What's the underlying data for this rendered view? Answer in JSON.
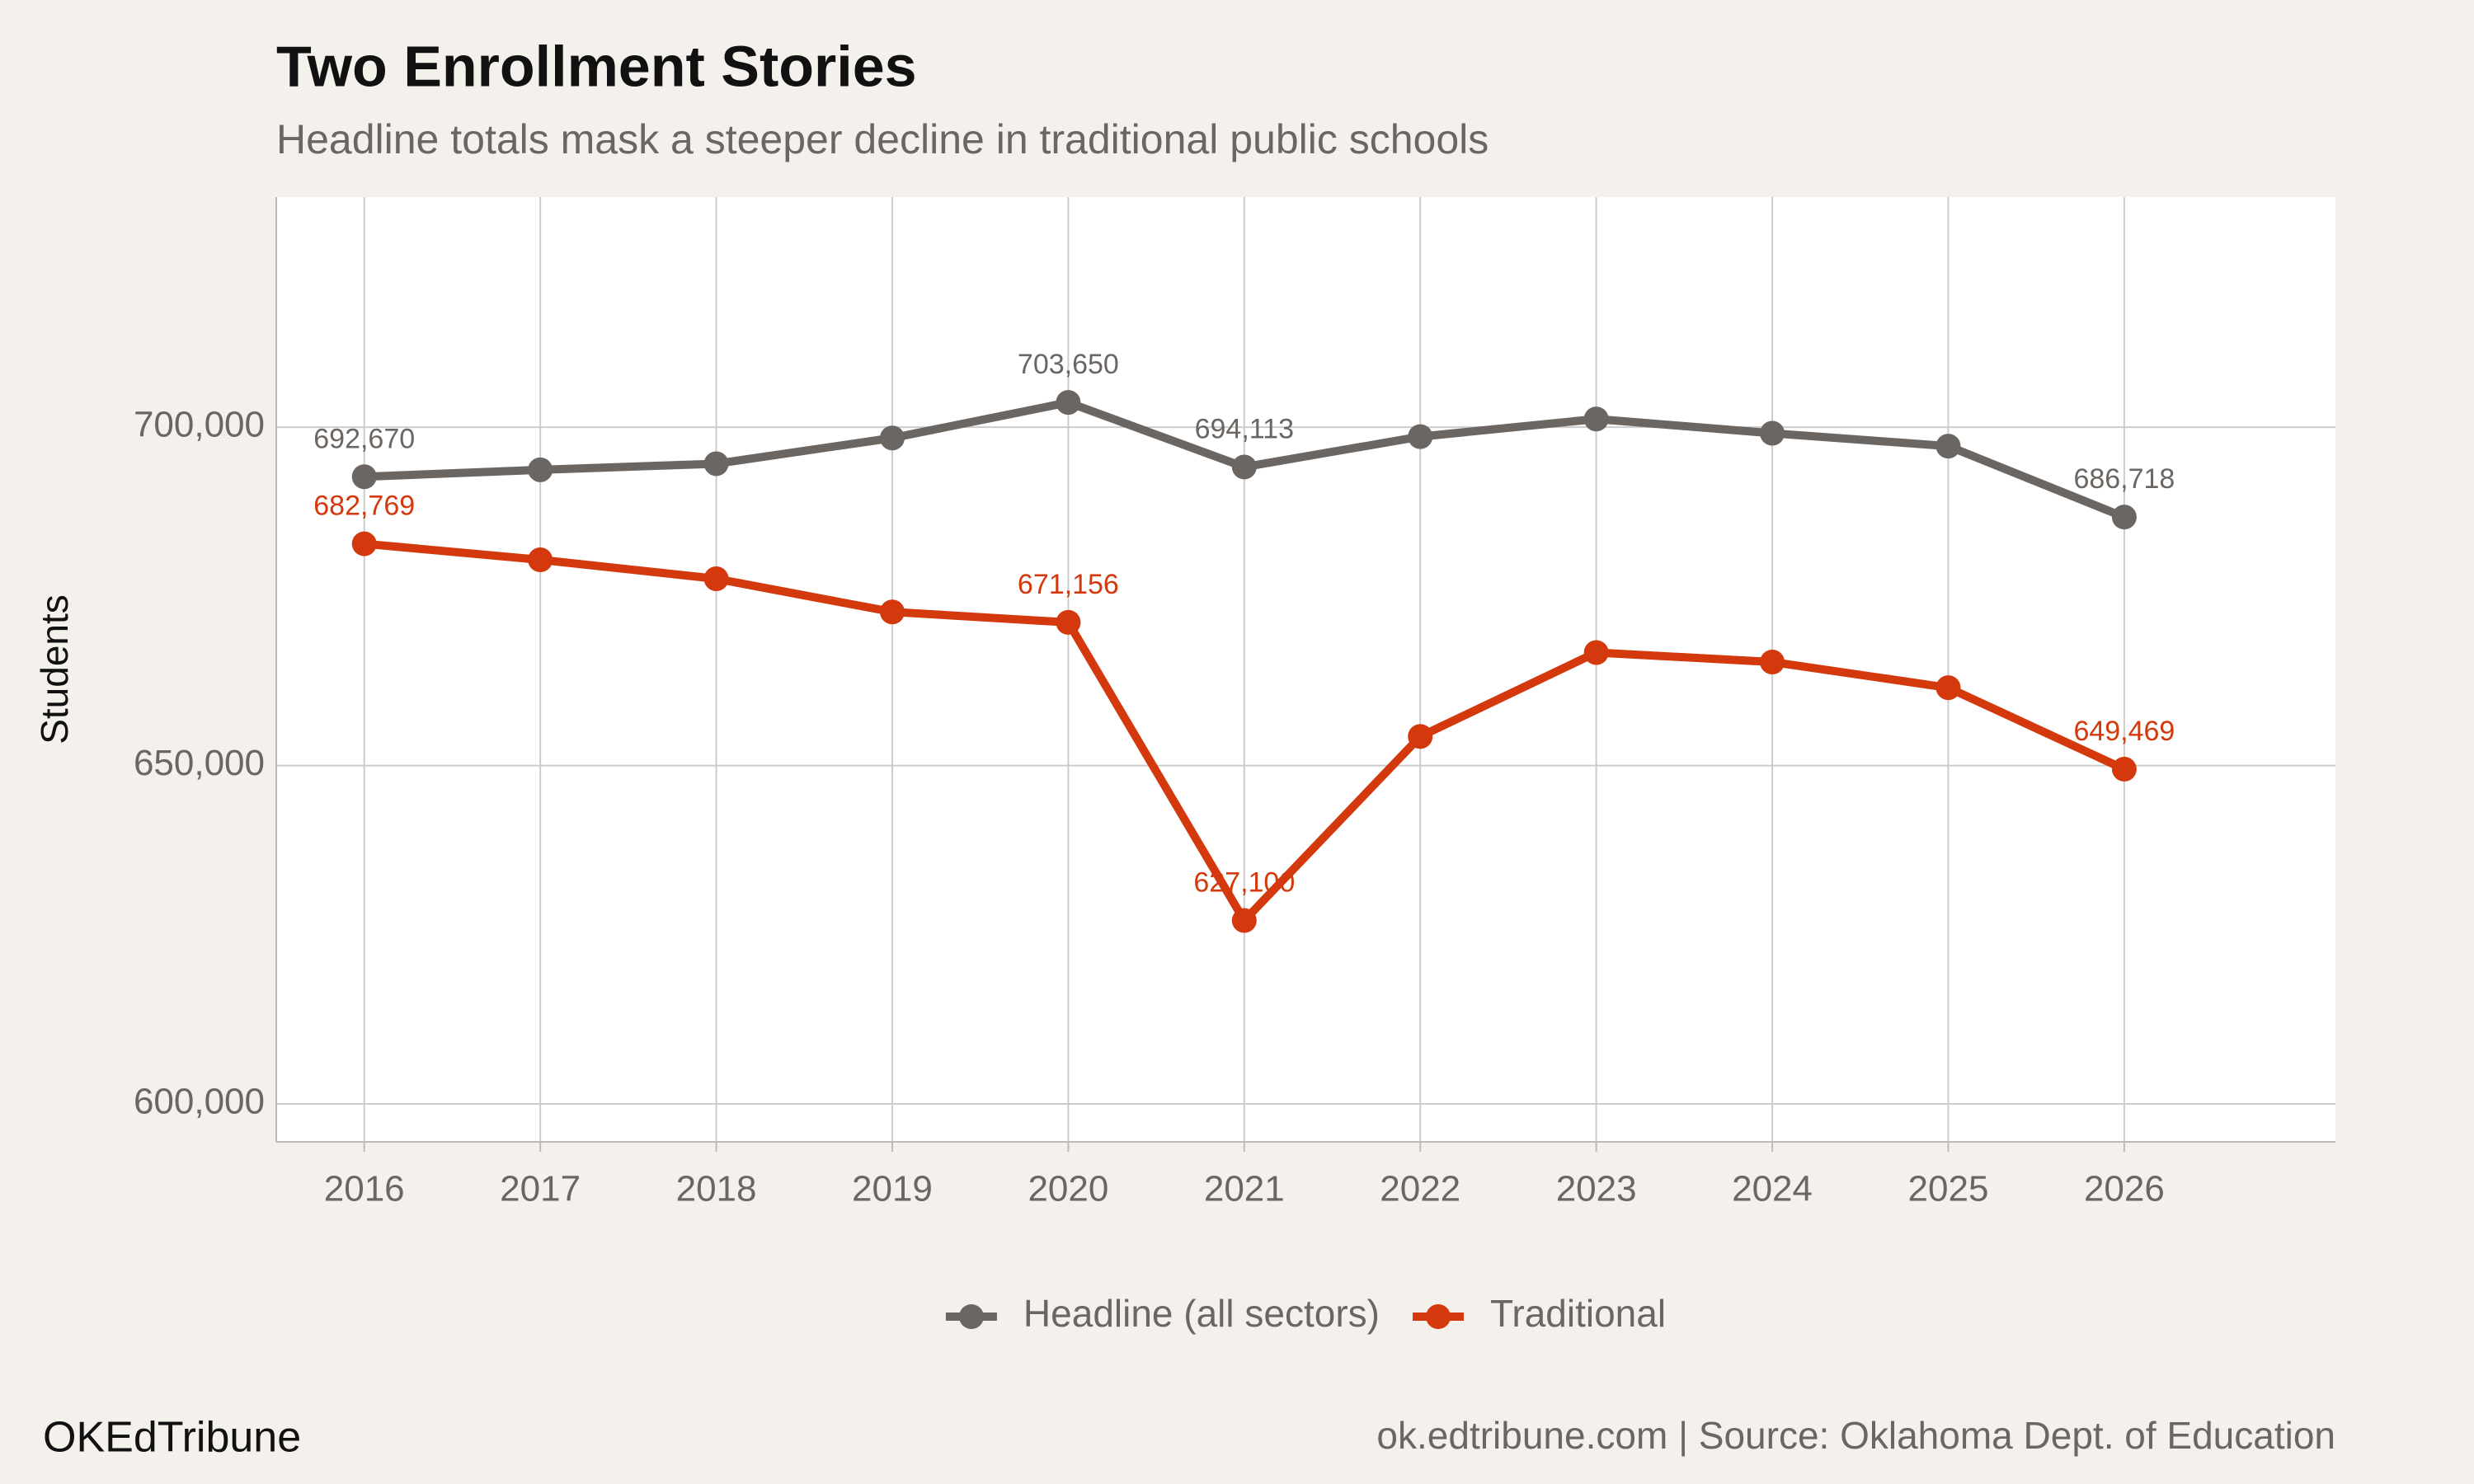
{
  "chart_data": {
    "type": "line",
    "title": "Two Enrollment Stories",
    "subtitle": "Headline totals mask a steeper decline in traditional public schools",
    "y_label": "Students",
    "x": [
      2016,
      2017,
      2018,
      2019,
      2020,
      2021,
      2022,
      2023,
      2024,
      2025,
      2026
    ],
    "xlim": [
      2015.5,
      2027.2
    ],
    "xticks": [
      2016,
      2017,
      2018,
      2019,
      2020,
      2021,
      2022,
      2023,
      2024,
      2025,
      2026
    ],
    "ylim": [
      594400,
      734000
    ],
    "yticks": [
      {
        "value": 600000,
        "label": "600,000"
      },
      {
        "value": 650000,
        "label": "650,000"
      },
      {
        "value": 700000,
        "label": "700,000"
      }
    ],
    "grid": true,
    "legend": "bottom",
    "series": [
      {
        "name": "Headline (all sectors)",
        "color": "#6b6662",
        "values": [
          692670,
          693700,
          694600,
          698400,
          703650,
          694113,
          698600,
          701200,
          699100,
          697200,
          686718
        ],
        "value_labels": [
          "692,670",
          null,
          null,
          null,
          "703,650",
          "694,113",
          null,
          null,
          null,
          null,
          "686,718"
        ]
      },
      {
        "name": "Traditional",
        "color": "#d4380d",
        "values": [
          682769,
          680400,
          677600,
          672700,
          671156,
          627100,
          654300,
          666700,
          665300,
          661500,
          649469
        ],
        "value_labels": [
          "682,769",
          null,
          null,
          null,
          "671,156",
          "627,100",
          null,
          null,
          null,
          null,
          "649,469"
        ]
      }
    ],
    "brand": "OKEdTribune",
    "source": "ok.edtribune.com | Source: Oklahoma Dept. of Education"
  }
}
